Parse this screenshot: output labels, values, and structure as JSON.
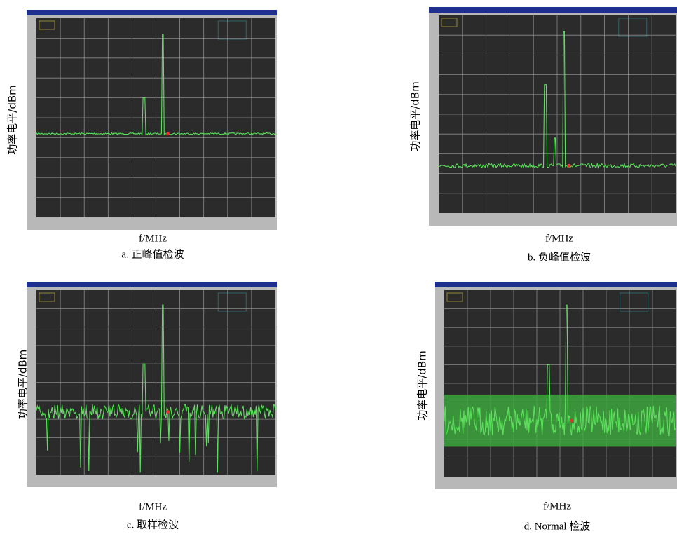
{
  "panels": [
    {
      "y_label": "功率电平/dBm",
      "x_label": "f/MHz",
      "caption": "a. 正峰值检波"
    },
    {
      "y_label": "功率电平/dBm",
      "x_label": "f/MHz",
      "caption": "b. 负峰值检波"
    },
    {
      "y_label": "功率电平/dBm",
      "x_label": "f/MHz",
      "caption": "c. 取样检波"
    },
    {
      "y_label": "功率电平/dBm",
      "x_label": "f/MHz",
      "caption": "d. Normal 检波"
    }
  ]
}
